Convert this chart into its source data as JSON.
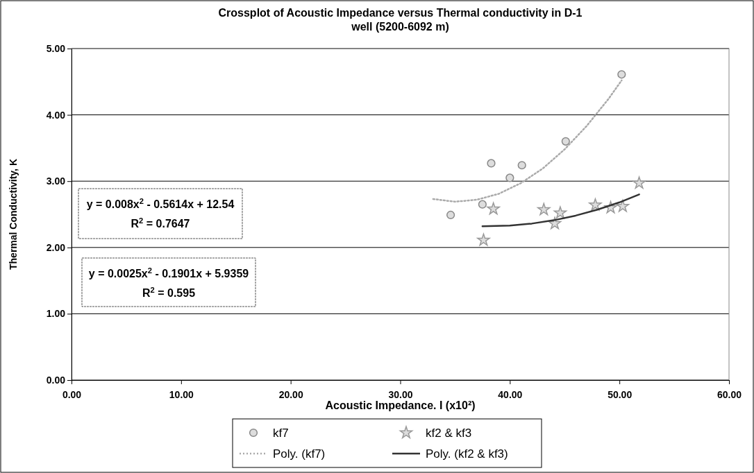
{
  "chart_data": {
    "type": "scatter",
    "title": "Crossplot of Acoustic Impedance versus Thermal conductivity in D-1 well (5200-6092 m)",
    "xlabel": "Acoustic Impedance. I (x10²)",
    "ylabel": "Thermal Conductivity, K",
    "xlim": [
      0,
      60
    ],
    "ylim": [
      0,
      5
    ],
    "xticks": [
      {
        "value": 0,
        "label": "0.00"
      },
      {
        "value": 10,
        "label": "10.00"
      },
      {
        "value": 20,
        "label": "20.00"
      },
      {
        "value": 30,
        "label": "30.00"
      },
      {
        "value": 40,
        "label": "40.00"
      },
      {
        "value": 50,
        "label": "50.00"
      },
      {
        "value": 60,
        "label": "60.00"
      }
    ],
    "yticks": [
      {
        "value": 0,
        "label": "0.00"
      },
      {
        "value": 1,
        "label": "1.00"
      },
      {
        "value": 2,
        "label": "2.00"
      },
      {
        "value": 3,
        "label": "3.00"
      },
      {
        "value": 4,
        "label": "4.00"
      },
      {
        "value": 5,
        "label": "5.00"
      }
    ],
    "grid": "y",
    "legend": "bottom",
    "series": [
      {
        "name": "kf7",
        "marker": "circle",
        "color": "#888888",
        "x": [
          50.2,
          45.1,
          38.3,
          41.1,
          40.0,
          37.5,
          34.6
        ],
        "values": [
          4.61,
          3.6,
          3.27,
          3.24,
          3.05,
          2.65,
          2.49
        ]
      },
      {
        "name": "kf2 & kf3",
        "marker": "star",
        "color": "#999999",
        "x": [
          51.8,
          38.5,
          43.1,
          44.6,
          44.1,
          37.6,
          47.8,
          49.2,
          50.3
        ],
        "values": [
          2.97,
          2.58,
          2.57,
          2.52,
          2.36,
          2.11,
          2.64,
          2.6,
          2.62
        ]
      },
      {
        "name": "Poly. (kf7)",
        "type": "line",
        "marker": "none",
        "line_style": "dotted",
        "color": "#aaaaaa",
        "x": [
          33,
          35,
          37,
          39,
          41,
          43,
          45,
          47,
          49,
          50.2
        ],
        "values": [
          2.73,
          2.69,
          2.72,
          2.81,
          2.97,
          3.19,
          3.48,
          3.83,
          4.24,
          4.52
        ]
      },
      {
        "name": "Poly. (kf2 & kf3)",
        "type": "line",
        "marker": "none",
        "line_style": "solid",
        "color": "#333333",
        "x": [
          37.5,
          40,
          42,
          44,
          46,
          48,
          50,
          51.8
        ],
        "values": [
          2.32,
          2.33,
          2.36,
          2.41,
          2.48,
          2.57,
          2.68,
          2.8
        ]
      }
    ],
    "annotations": [
      "y = 0.008x$^{2}$ - 0.5614x + 12.54",
      "R$^{2}$ = 0.7647",
      "y = 0.0025x$^{2}$ - 0.1901x + 5.9359",
      "R$^{2}$ = 0.595"
    ]
  }
}
